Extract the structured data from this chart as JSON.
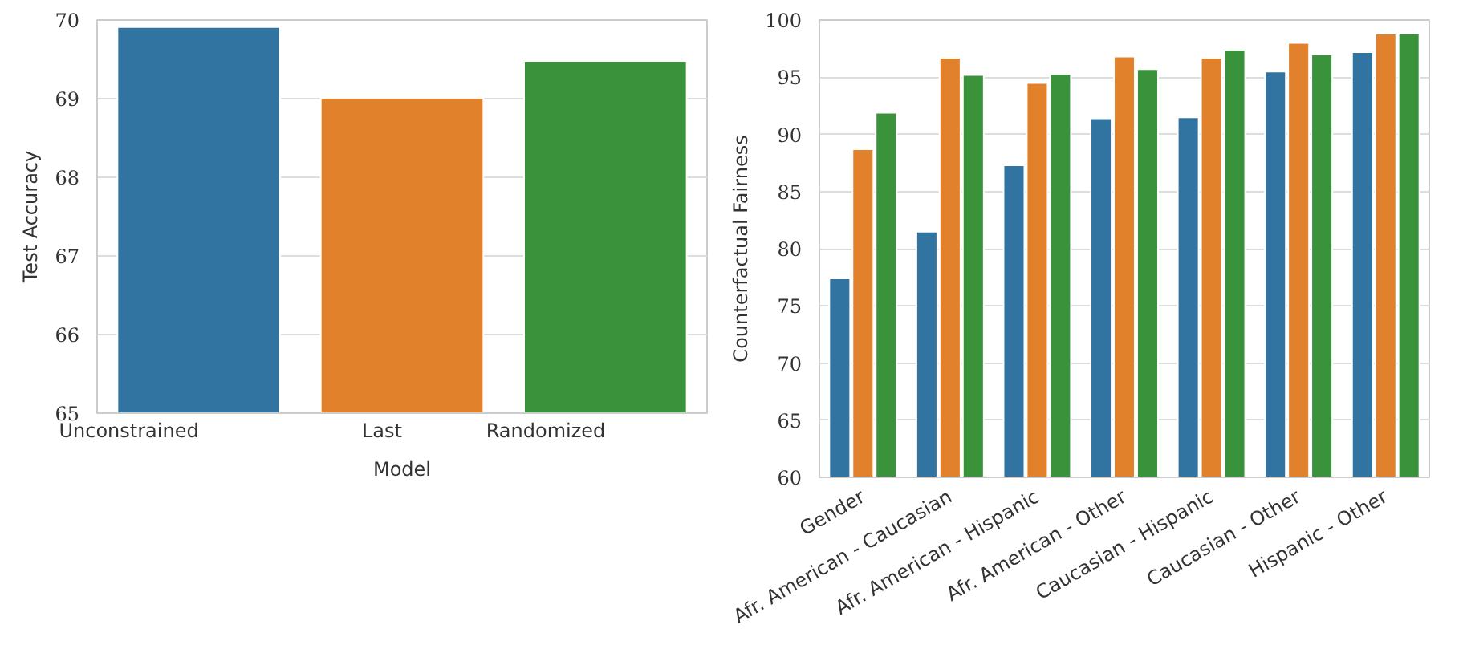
{
  "chart_data": [
    {
      "type": "bar",
      "categories": [
        "Unconstrained",
        "Last",
        "Randomized"
      ],
      "values": [
        69.91,
        69.01,
        69.48
      ],
      "colors": [
        "#3274a1",
        "#e1812c",
        "#3a923a"
      ],
      "xlabel": "Model",
      "ylabel": "Test Accuracy",
      "ylim": [
        65,
        70
      ],
      "yticks": [
        65,
        66,
        67,
        68,
        69,
        70
      ],
      "grid": "y"
    },
    {
      "type": "bar",
      "categories": [
        "Gender",
        "Afr. American - Caucasian",
        "Afr. American - Hispanic",
        "Afr. American - Other",
        "Caucasian - Hispanic",
        "Caucasian - Other",
        "Hispanic - Other"
      ],
      "ylabel": "Counterfactual Fairness",
      "ylim": [
        60,
        100
      ],
      "yticks": [
        60,
        65,
        70,
        75,
        80,
        85,
        90,
        95,
        100
      ],
      "grid": "y",
      "series": [
        {
          "color": "#3274a1",
          "values": [
            77.4,
            81.5,
            87.3,
            91.4,
            91.5,
            95.5,
            97.2
          ]
        },
        {
          "color": "#e1812c",
          "values": [
            88.7,
            96.7,
            94.5,
            96.8,
            96.7,
            98.0,
            98.8
          ]
        },
        {
          "color": "#3a923a",
          "values": [
            91.9,
            95.2,
            95.3,
            95.7,
            97.4,
            97.0,
            98.8
          ]
        }
      ]
    }
  ]
}
